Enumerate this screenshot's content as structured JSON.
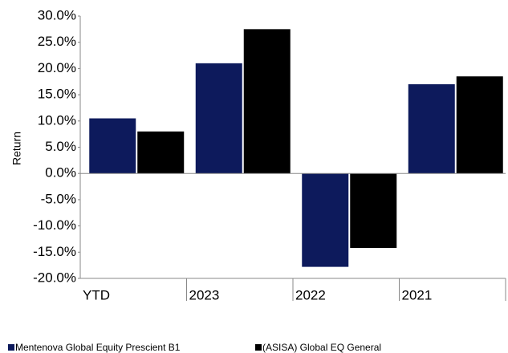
{
  "chart_data": {
    "type": "bar",
    "y_label": "Return",
    "categories": [
      "YTD",
      "2023",
      "2022",
      "2021"
    ],
    "series": [
      {
        "name": "Mentenova Global Equity Prescient B1",
        "color": "#0d1a5c",
        "values": [
          10.5,
          21.0,
          -17.8,
          17.0
        ]
      },
      {
        "name": "(ASISA) Global EQ General",
        "color": "#000000",
        "values": [
          8.0,
          27.5,
          -14.2,
          18.5
        ]
      }
    ],
    "ylim": [
      -20,
      30
    ],
    "yticks": [
      {
        "value": -20,
        "label": "-20.0%"
      },
      {
        "value": -15,
        "label": "-15.0%"
      },
      {
        "value": -10,
        "label": "-10.0%"
      },
      {
        "value": -5,
        "label": "-5.0%"
      },
      {
        "value": 0,
        "label": "0.0%"
      },
      {
        "value": 5,
        "label": "5.0%"
      },
      {
        "value": 10,
        "label": "10.0%"
      },
      {
        "value": 15,
        "label": "15.0%"
      },
      {
        "value": 20,
        "label": "20.0%"
      },
      {
        "value": 25,
        "label": "25.0%"
      },
      {
        "value": 30,
        "label": "30.0%"
      }
    ]
  }
}
